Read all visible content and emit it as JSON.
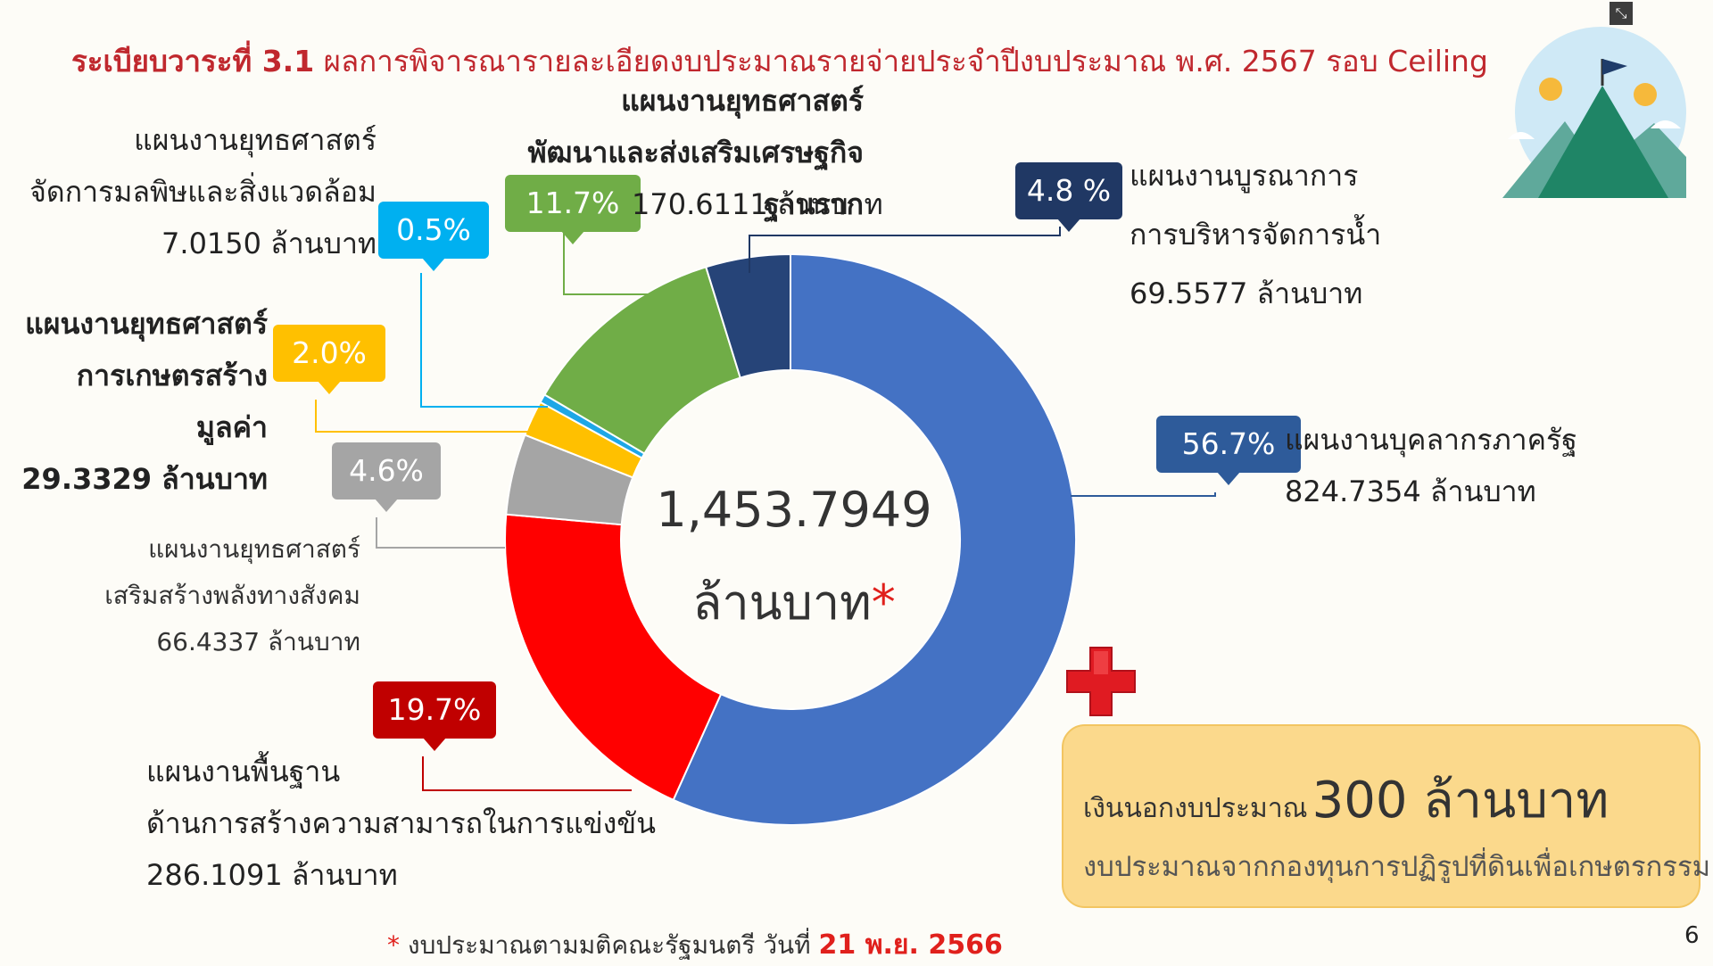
{
  "slide": {
    "title_bold": "ระเบียบวาระที่ 3.1",
    "title_rest": "ผลการพิจารณารายละเอียดงบประมาณรายจ่ายประจำปีงบประมาณ พ.ศ. 2567 รอบ Ceiling",
    "page_number": "6"
  },
  "center": {
    "total": "1,453.7949",
    "unit": "ล้านบาท",
    "star": "*"
  },
  "segments": [
    {
      "key": "personnel",
      "line1": "แผนงานบุคลากรภาครัฐ",
      "line2": "",
      "amount": "824.7354 ล้านบาท",
      "pct": "56.7%",
      "color": "#4472c4",
      "badge_color": "#2e5b9a"
    },
    {
      "key": "basic",
      "line1": "แผนงานพื้นฐาน",
      "line2": "ด้านการสร้างความสามารถในการแข่งขัน",
      "amount": "286.1091 ล้านบาท",
      "pct": "19.7%",
      "color": "#ff0000",
      "badge_color": "#c00000"
    },
    {
      "key": "social",
      "line1": "แผนงานยุทธศาสตร์",
      "line2": "เสริมสร้างพลังทางสังคม",
      "amount": "66.4337 ล้านบาท",
      "pct": "4.6%",
      "color": "#a5a5a5",
      "badge_color": "#a5a5a5"
    },
    {
      "key": "agri",
      "line1": "แผนงานยุทธศาสตร์",
      "line2": "การเกษตรสร้างมูลค่า",
      "amount": "29.3329 ล้านบาท",
      "pct": "2.0%",
      "color": "#ffc000",
      "badge_color": "#ffc000"
    },
    {
      "key": "pollution",
      "line1": "แผนงานยุทธศาสตร์",
      "line2": "จัดการมลพิษและสิ่งแวดล้อม",
      "amount": "7.0150 ล้านบาท",
      "pct": "0.5%",
      "color": "#1ea7e6",
      "badge_color": "#00b0f0"
    },
    {
      "key": "economy",
      "line1": "แผนงานยุทธศาสตร์",
      "line2": "พัฒนาและส่งเสริมเศรษฐกิจฐานราก",
      "amount": "170.6111 ล้านบาท",
      "pct": "11.7%",
      "color": "#70ad47",
      "badge_color": "#70ad47"
    },
    {
      "key": "water",
      "line1": "แผนงานบูรณาการ",
      "line2": "การบริหารจัดการน้ำ",
      "amount": "69.5577 ล้านบาท",
      "pct": "4.8 %",
      "color": "#264478",
      "badge_color": "#203864"
    }
  ],
  "chart_data": {
    "type": "pie",
    "categories": [
      "แผนงานบุคลากรภาครัฐ",
      "แผนงานพื้นฐาน ด้านการสร้างความสามารถในการแข่งขัน",
      "แผนงานยุทธศาสตร์ เสริมสร้างพลังทางสังคม",
      "แผนงานยุทธศาสตร์ การเกษตรสร้างมูลค่า",
      "แผนงานยุทธศาสตร์ จัดการมลพิษและสิ่งแวดล้อม",
      "แผนงานยุทธศาสตร์ พัฒนาและส่งเสริมเศรษฐกิจฐานราก",
      "แผนงานบูรณาการ การบริหารจัดการน้ำ"
    ],
    "values": [
      824.7354,
      286.1091,
      66.4337,
      29.3329,
      7.015,
      170.6111,
      69.5577
    ],
    "percentages": [
      56.7,
      19.7,
      4.6,
      2.0,
      0.5,
      11.7,
      4.8
    ],
    "total": 1453.7949,
    "unit": "ล้านบาท",
    "donut": true
  },
  "extra_budget": {
    "label": "เงินนอกงบประมาณ",
    "amount": "300 ล้านบาท",
    "source": "งบประมาณจากกองทุนการปฏิรูปที่ดินเพื่อเกษตรกรรม"
  },
  "footnote": {
    "star": "*",
    "text": " งบประมาณตามมติคณะรัฐมนตรี วันที่ ",
    "date": "21 พ.ย. 2566"
  },
  "icons": {
    "collapse": "collapse-icon",
    "cross": "red-cross-plus-icon",
    "decoration": "mountain-flag-coins-icon"
  }
}
